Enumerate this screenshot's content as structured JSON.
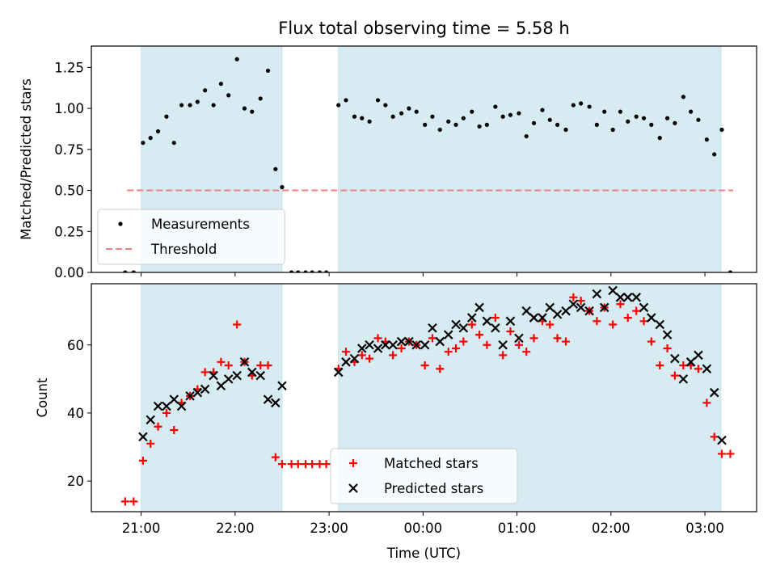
{
  "figure": {
    "title": "Flux total observing time = 5.58 h"
  },
  "chart_data": [
    {
      "type": "scatter",
      "panel": "top",
      "title": "Flux total observing time = 5.58 h",
      "xlabel": "",
      "ylabel": "Matched/Predicted stars",
      "ylim": [
        0.0,
        1.38
      ],
      "yticks": [
        "0.00",
        "0.25",
        "0.50",
        "0.75",
        "1.00",
        "1.25"
      ],
      "legend_placement": "lower-left",
      "shaded_intervals_h": [
        [
          21.0,
          22.5
        ],
        [
          23.1,
          27.17
        ]
      ],
      "series": [
        {
          "name": "Measurements",
          "marker": "dot",
          "color": "#000000",
          "points": [
            [
              20.83,
              0.0
            ],
            [
              20.92,
              0.0
            ],
            [
              21.02,
              0.79
            ],
            [
              21.1,
              0.82
            ],
            [
              21.18,
              0.86
            ],
            [
              21.27,
              0.95
            ],
            [
              21.35,
              0.79
            ],
            [
              21.43,
              1.02
            ],
            [
              21.52,
              1.02
            ],
            [
              21.6,
              1.04
            ],
            [
              21.68,
              1.11
            ],
            [
              21.77,
              1.02
            ],
            [
              21.85,
              1.15
            ],
            [
              21.93,
              1.08
            ],
            [
              22.02,
              1.3
            ],
            [
              22.1,
              1.0
            ],
            [
              22.18,
              0.98
            ],
            [
              22.27,
              1.06
            ],
            [
              22.35,
              1.23
            ],
            [
              22.43,
              0.63
            ],
            [
              22.5,
              0.52
            ],
            [
              22.6,
              0.0
            ],
            [
              22.67,
              0.0
            ],
            [
              22.75,
              0.0
            ],
            [
              22.82,
              0.0
            ],
            [
              22.9,
              0.0
            ],
            [
              22.97,
              0.0
            ],
            [
              23.1,
              1.02
            ],
            [
              23.18,
              1.05
            ],
            [
              23.27,
              0.95
            ],
            [
              23.35,
              0.94
            ],
            [
              23.43,
              0.92
            ],
            [
              23.52,
              1.05
            ],
            [
              23.6,
              1.02
            ],
            [
              23.68,
              0.95
            ],
            [
              23.77,
              0.97
            ],
            [
              23.85,
              1.0
            ],
            [
              23.93,
              0.98
            ],
            [
              24.02,
              0.9
            ],
            [
              24.1,
              0.95
            ],
            [
              24.18,
              0.87
            ],
            [
              24.27,
              0.92
            ],
            [
              24.35,
              0.9
            ],
            [
              24.43,
              0.94
            ],
            [
              24.52,
              0.98
            ],
            [
              24.6,
              0.89
            ],
            [
              24.68,
              0.9
            ],
            [
              24.77,
              1.01
            ],
            [
              24.85,
              0.95
            ],
            [
              24.93,
              0.96
            ],
            [
              25.02,
              0.97
            ],
            [
              25.1,
              0.83
            ],
            [
              25.18,
              0.91
            ],
            [
              25.27,
              0.99
            ],
            [
              25.35,
              0.93
            ],
            [
              25.43,
              0.9
            ],
            [
              25.52,
              0.87
            ],
            [
              25.6,
              1.02
            ],
            [
              25.68,
              1.03
            ],
            [
              25.77,
              1.01
            ],
            [
              25.85,
              0.9
            ],
            [
              25.93,
              0.98
            ],
            [
              26.02,
              0.87
            ],
            [
              26.1,
              0.98
            ],
            [
              26.18,
              0.92
            ],
            [
              26.27,
              0.95
            ],
            [
              26.35,
              0.94
            ],
            [
              26.43,
              0.9
            ],
            [
              26.52,
              0.82
            ],
            [
              26.6,
              0.94
            ],
            [
              26.68,
              0.91
            ],
            [
              26.77,
              1.07
            ],
            [
              26.85,
              0.98
            ],
            [
              26.93,
              0.93
            ],
            [
              27.02,
              0.81
            ],
            [
              27.1,
              0.72
            ],
            [
              27.18,
              0.87
            ],
            [
              27.27,
              0.0
            ]
          ]
        },
        {
          "name": "Threshold",
          "marker": "dashed-line",
          "color": "#f08080",
          "points": [
            [
              20.85,
              0.5
            ],
            [
              27.3,
              0.5
            ]
          ]
        }
      ]
    },
    {
      "type": "scatter",
      "panel": "bottom",
      "title": "",
      "xlabel": "Time (UTC)",
      "ylabel": "Count",
      "ylim": [
        11,
        78
      ],
      "yticks": [
        "20",
        "40",
        "60"
      ],
      "x_axis": "clock time, hours after 00:00 of first night",
      "xlim": [
        20.47,
        27.55
      ],
      "xticks": [
        {
          "value": 21,
          "label": "21:00"
        },
        {
          "value": 22,
          "label": "22:00"
        },
        {
          "value": 23,
          "label": "23:00"
        },
        {
          "value": 24,
          "label": "00:00"
        },
        {
          "value": 25,
          "label": "01:00"
        },
        {
          "value": 26,
          "label": "02:00"
        },
        {
          "value": 27,
          "label": "03:00"
        }
      ],
      "legend_placement": "lower-center",
      "shaded_intervals_h": [
        [
          21.0,
          22.5
        ],
        [
          23.1,
          27.17
        ]
      ],
      "series": [
        {
          "name": "Matched stars",
          "marker": "plus",
          "color": "#ff0000",
          "points": [
            [
              20.83,
              14
            ],
            [
              20.92,
              14
            ],
            [
              21.02,
              26
            ],
            [
              21.1,
              31
            ],
            [
              21.18,
              36
            ],
            [
              21.27,
              40
            ],
            [
              21.35,
              35
            ],
            [
              21.43,
              43
            ],
            [
              21.52,
              45
            ],
            [
              21.6,
              47
            ],
            [
              21.68,
              52
            ],
            [
              21.77,
              52
            ],
            [
              21.85,
              55
            ],
            [
              21.93,
              54
            ],
            [
              22.02,
              66
            ],
            [
              22.1,
              55
            ],
            [
              22.18,
              51
            ],
            [
              22.27,
              54
            ],
            [
              22.35,
              54
            ],
            [
              22.43,
              27
            ],
            [
              22.5,
              25
            ],
            [
              22.6,
              25
            ],
            [
              22.67,
              25
            ],
            [
              22.75,
              25
            ],
            [
              22.82,
              25
            ],
            [
              22.9,
              25
            ],
            [
              22.97,
              25
            ],
            [
              23.1,
              53
            ],
            [
              23.18,
              58
            ],
            [
              23.27,
              55
            ],
            [
              23.35,
              57
            ],
            [
              23.43,
              56
            ],
            [
              23.52,
              62
            ],
            [
              23.6,
              61
            ],
            [
              23.68,
              57
            ],
            [
              23.77,
              59
            ],
            [
              23.85,
              61
            ],
            [
              23.93,
              60
            ],
            [
              24.02,
              54
            ],
            [
              24.1,
              62
            ],
            [
              24.18,
              53
            ],
            [
              24.27,
              58
            ],
            [
              24.35,
              59
            ],
            [
              24.43,
              61
            ],
            [
              24.52,
              66
            ],
            [
              24.6,
              63
            ],
            [
              24.68,
              60
            ],
            [
              24.77,
              68
            ],
            [
              24.85,
              57
            ],
            [
              24.93,
              64
            ],
            [
              25.02,
              60
            ],
            [
              25.1,
              58
            ],
            [
              25.18,
              62
            ],
            [
              25.27,
              67
            ],
            [
              25.35,
              66
            ],
            [
              25.43,
              62
            ],
            [
              25.52,
              61
            ],
            [
              25.6,
              74
            ],
            [
              25.68,
              73
            ],
            [
              25.77,
              70
            ],
            [
              25.85,
              67
            ],
            [
              25.93,
              71
            ],
            [
              26.02,
              66
            ],
            [
              26.1,
              72
            ],
            [
              26.18,
              68
            ],
            [
              26.27,
              70
            ],
            [
              26.35,
              67
            ],
            [
              26.43,
              61
            ],
            [
              26.52,
              54
            ],
            [
              26.6,
              59
            ],
            [
              26.68,
              51
            ],
            [
              26.77,
              54
            ],
            [
              26.85,
              54
            ],
            [
              26.93,
              53
            ],
            [
              27.02,
              43
            ],
            [
              27.1,
              33
            ],
            [
              27.18,
              28
            ],
            [
              27.27,
              28
            ]
          ]
        },
        {
          "name": "Predicted stars",
          "marker": "x",
          "color": "#000000",
          "points": [
            [
              21.02,
              33
            ],
            [
              21.1,
              38
            ],
            [
              21.18,
              42
            ],
            [
              21.27,
              42
            ],
            [
              21.35,
              44
            ],
            [
              21.43,
              42
            ],
            [
              21.52,
              45
            ],
            [
              21.6,
              46
            ],
            [
              21.68,
              47
            ],
            [
              21.77,
              51
            ],
            [
              21.85,
              48
            ],
            [
              21.93,
              50
            ],
            [
              22.02,
              51
            ],
            [
              22.1,
              55
            ],
            [
              22.18,
              52
            ],
            [
              22.27,
              51
            ],
            [
              22.35,
              44
            ],
            [
              22.43,
              43
            ],
            [
              22.5,
              48
            ],
            [
              23.1,
              52
            ],
            [
              23.18,
              55
            ],
            [
              23.27,
              56
            ],
            [
              23.35,
              59
            ],
            [
              23.43,
              60
            ],
            [
              23.52,
              59
            ],
            [
              23.6,
              60
            ],
            [
              23.68,
              60
            ],
            [
              23.77,
              61
            ],
            [
              23.85,
              61
            ],
            [
              23.93,
              60
            ],
            [
              24.02,
              60
            ],
            [
              24.1,
              65
            ],
            [
              24.18,
              61
            ],
            [
              24.27,
              63
            ],
            [
              24.35,
              66
            ],
            [
              24.43,
              65
            ],
            [
              24.52,
              68
            ],
            [
              24.6,
              71
            ],
            [
              24.68,
              67
            ],
            [
              24.77,
              65
            ],
            [
              24.85,
              60
            ],
            [
              24.93,
              67
            ],
            [
              25.02,
              62
            ],
            [
              25.1,
              70
            ],
            [
              25.18,
              68
            ],
            [
              25.27,
              68
            ],
            [
              25.35,
              71
            ],
            [
              25.43,
              69
            ],
            [
              25.52,
              70
            ],
            [
              25.6,
              72
            ],
            [
              25.68,
              71
            ],
            [
              25.77,
              70
            ],
            [
              25.85,
              75
            ],
            [
              25.93,
              71
            ],
            [
              26.02,
              76
            ],
            [
              26.1,
              74
            ],
            [
              26.18,
              74
            ],
            [
              26.27,
              74
            ],
            [
              26.35,
              71
            ],
            [
              26.43,
              68
            ],
            [
              26.52,
              66
            ],
            [
              26.6,
              63
            ],
            [
              26.68,
              56
            ],
            [
              26.77,
              50
            ],
            [
              26.85,
              55
            ],
            [
              26.93,
              57
            ],
            [
              27.02,
              53
            ],
            [
              27.1,
              46
            ],
            [
              27.18,
              32
            ]
          ]
        }
      ]
    }
  ]
}
